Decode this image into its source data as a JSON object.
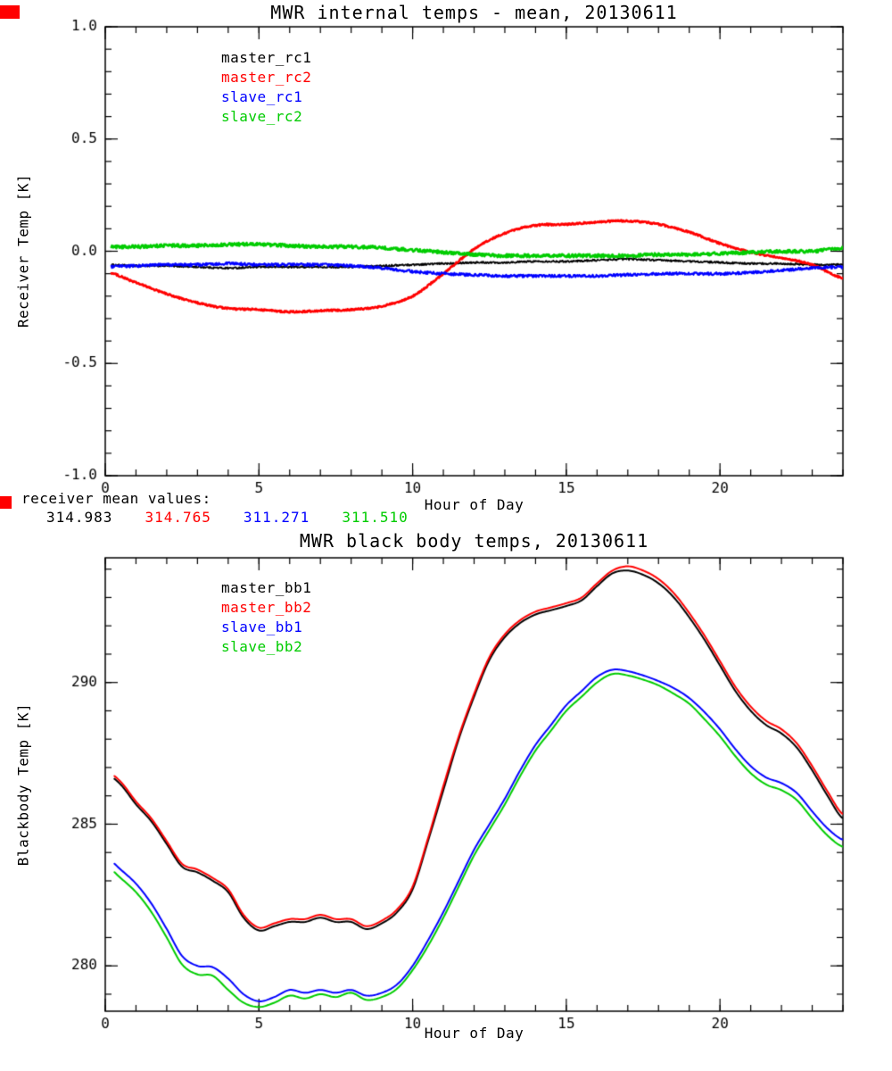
{
  "window": {
    "bg": "#ffffff"
  },
  "artifacts": {
    "color": "#ff0000"
  },
  "mean_values": {
    "label": "receiver mean values:",
    "items": [
      {
        "value": "314.983",
        "color": "#000000"
      },
      {
        "value": "314.765",
        "color": "#ff0000"
      },
      {
        "value": "311.271",
        "color": "#0000ff"
      },
      {
        "value": "311.510",
        "color": "#00cc00"
      }
    ]
  },
  "chart_data": [
    {
      "type": "line",
      "title": "MWR internal temps - mean, 20130611",
      "xlabel": "Hour of Day",
      "ylabel": "Receiver Temp [K]",
      "xlim": [
        0,
        24
      ],
      "ylim": [
        -1.0,
        1.0
      ],
      "xticks": [
        0,
        5,
        10,
        15,
        20
      ],
      "xtick_labels": [
        "0",
        "5",
        "10",
        "15",
        "20"
      ],
      "yticks": [
        -1.0,
        -0.5,
        0.0,
        0.5,
        1.0
      ],
      "ytick_labels": [
        "-1.0",
        "-0.5",
        "0.0",
        "0.5",
        "1.0"
      ],
      "xminor": 1,
      "yminor": 0.1,
      "grid": false,
      "legend_position": "upper-left-inside",
      "sample_step": 0.02,
      "series": [
        {
          "name": "master_rc1",
          "color": "#000000",
          "lw": 1.8,
          "noise": 0.004,
          "x0": 0.2,
          "step": 1,
          "values": [
            -0.06,
            -0.065,
            -0.065,
            -0.07,
            -0.075,
            -0.07,
            -0.07,
            -0.07,
            -0.07,
            -0.065,
            -0.06,
            -0.055,
            -0.05,
            -0.05,
            -0.045,
            -0.045,
            -0.04,
            -0.035,
            -0.04,
            -0.045,
            -0.05,
            -0.055,
            -0.055,
            -0.06,
            -0.06
          ]
        },
        {
          "name": "master_rc2",
          "color": "#ff0000",
          "lw": 2.6,
          "noise": 0.004,
          "x0": 0.2,
          "step": 1,
          "values": [
            -0.09,
            -0.14,
            -0.19,
            -0.23,
            -0.255,
            -0.26,
            -0.27,
            -0.265,
            -0.26,
            -0.245,
            -0.2,
            -0.1,
            0.01,
            0.08,
            0.115,
            0.12,
            0.13,
            0.135,
            0.12,
            0.085,
            0.035,
            -0.005,
            -0.03,
            -0.06,
            -0.12
          ]
        },
        {
          "name": "slave_rc1",
          "color": "#0000ff",
          "lw": 2.2,
          "noise": 0.006,
          "x0": 0.2,
          "step": 1,
          "values": [
            -0.07,
            -0.065,
            -0.06,
            -0.06,
            -0.055,
            -0.06,
            -0.06,
            -0.06,
            -0.065,
            -0.075,
            -0.09,
            -0.1,
            -0.105,
            -0.11,
            -0.11,
            -0.11,
            -0.11,
            -0.105,
            -0.1,
            -0.1,
            -0.1,
            -0.095,
            -0.085,
            -0.075,
            -0.07
          ]
        },
        {
          "name": "slave_rc2",
          "color": "#00cc00",
          "lw": 2.6,
          "noise": 0.007,
          "x0": 0.2,
          "step": 1,
          "values": [
            0.02,
            0.02,
            0.025,
            0.025,
            0.03,
            0.03,
            0.025,
            0.02,
            0.02,
            0.015,
            0.005,
            -0.005,
            -0.015,
            -0.02,
            -0.02,
            -0.02,
            -0.02,
            -0.02,
            -0.015,
            -0.015,
            -0.01,
            -0.005,
            0.0,
            0.0,
            0.015
          ]
        }
      ]
    },
    {
      "type": "line",
      "title": "MWR black body temps, 20130611",
      "xlabel": "Hour of Day",
      "ylabel": "Blackbody Temp [K]",
      "xlim": [
        0,
        24
      ],
      "ylim": [
        278.4,
        294.4
      ],
      "xticks": [
        0,
        5,
        10,
        15,
        20
      ],
      "xtick_labels": [
        "0",
        "5",
        "10",
        "15",
        "20"
      ],
      "yticks": [
        280,
        285,
        290
      ],
      "ytick_labels": [
        "280",
        "285",
        "290"
      ],
      "xminor": 1,
      "yminor": 1,
      "grid": false,
      "legend_position": "upper-left-inside",
      "sample_step": 0.04,
      "series": [
        {
          "name": "master_bb1",
          "color": "#000000",
          "lw": 2.0,
          "noise": 0,
          "x0": 0.3,
          "step": 0.5,
          "values": [
            286.8,
            286.4,
            285.7,
            285.1,
            284.3,
            283.5,
            283.3,
            283.0,
            282.6,
            281.7,
            281.25,
            281.4,
            281.55,
            281.55,
            281.7,
            281.55,
            281.55,
            281.3,
            281.5,
            281.9,
            282.7,
            284.4,
            286.2,
            288.0,
            289.5,
            290.8,
            291.6,
            292.1,
            292.4,
            292.55,
            292.7,
            292.9,
            293.4,
            293.85,
            293.95,
            293.8,
            293.5,
            293.0,
            292.3,
            291.5,
            290.6,
            289.7,
            289.0,
            288.5,
            288.2,
            287.7,
            286.9,
            286.0,
            285.2
          ]
        },
        {
          "name": "master_bb2",
          "color": "#ff0000",
          "lw": 2.0,
          "noise": 0,
          "x0": 0.3,
          "step": 0.5,
          "values": [
            286.9,
            286.5,
            285.8,
            285.2,
            284.4,
            283.6,
            283.4,
            283.1,
            282.7,
            281.8,
            281.35,
            281.5,
            281.65,
            281.65,
            281.8,
            281.65,
            281.65,
            281.4,
            281.6,
            282.0,
            282.8,
            284.5,
            286.35,
            288.1,
            289.6,
            290.9,
            291.7,
            292.2,
            292.5,
            292.65,
            292.8,
            293.0,
            293.5,
            293.95,
            294.1,
            293.95,
            293.65,
            293.15,
            292.45,
            291.65,
            290.75,
            289.85,
            289.15,
            288.65,
            288.35,
            287.85,
            287.05,
            286.15,
            285.35
          ]
        },
        {
          "name": "slave_bb1",
          "color": "#0000ff",
          "lw": 2.0,
          "noise": 0,
          "x0": 0.3,
          "step": 0.5,
          "values": [
            283.85,
            283.4,
            282.9,
            282.2,
            281.3,
            280.35,
            280.0,
            279.95,
            279.55,
            279.0,
            278.75,
            278.9,
            279.15,
            279.05,
            279.15,
            279.05,
            279.15,
            278.95,
            279.05,
            279.35,
            280.0,
            280.9,
            281.9,
            283.0,
            284.1,
            285.0,
            285.9,
            286.9,
            287.8,
            288.5,
            289.2,
            289.7,
            290.2,
            290.45,
            290.4,
            290.25,
            290.05,
            289.8,
            289.45,
            288.95,
            288.35,
            287.65,
            287.05,
            286.65,
            286.45,
            286.1,
            285.45,
            284.85,
            284.45
          ]
        },
        {
          "name": "slave_bb2",
          "color": "#00cc00",
          "lw": 2.0,
          "noise": 0,
          "x0": 0.3,
          "step": 0.5,
          "values": [
            283.55,
            283.1,
            282.6,
            281.9,
            281.0,
            280.05,
            279.7,
            279.65,
            279.15,
            278.7,
            278.55,
            278.7,
            278.95,
            278.85,
            279.0,
            278.9,
            279.05,
            278.8,
            278.9,
            279.2,
            279.85,
            280.7,
            281.7,
            282.8,
            283.9,
            284.8,
            285.7,
            286.7,
            287.6,
            288.3,
            289.0,
            289.5,
            290.0,
            290.3,
            290.25,
            290.1,
            289.9,
            289.6,
            289.25,
            288.7,
            288.1,
            287.4,
            286.8,
            286.4,
            286.2,
            285.85,
            285.2,
            284.6,
            284.2
          ]
        }
      ]
    }
  ]
}
